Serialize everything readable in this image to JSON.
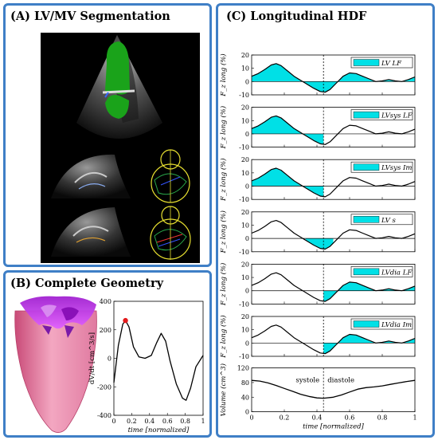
{
  "panels": {
    "a": {
      "title": "(A) LV/MV Segmentation"
    },
    "b": {
      "title": "(B) Complete Geometry"
    },
    "c": {
      "title": "(C) Longitudinal HDF"
    }
  },
  "colors": {
    "panel_border": "#3f7fc6",
    "fill": "#00e0e6",
    "curve": "#000000",
    "marker": "#e31a1c"
  },
  "icons": [
    "echo-apical-view",
    "echo-slice-1",
    "echo-slice-2",
    "lv-mesh-3d"
  ],
  "chart_data": [
    {
      "type": "line",
      "id": "dvdt",
      "xlabel": "time [normalized]",
      "ylabel": "dV/dt [cm^3/s]",
      "x_ticks": [
        "0",
        "0.2",
        "0.4",
        "0.6",
        "0.8",
        "1"
      ],
      "y_ticks": [
        "400",
        "200",
        "0",
        "-200",
        "-400"
      ],
      "xlim": [
        0,
        1
      ],
      "ylim": [
        -400,
        400
      ],
      "x": [
        0,
        0.05,
        0.1,
        0.13,
        0.17,
        0.22,
        0.28,
        0.35,
        0.42,
        0.48,
        0.53,
        0.58,
        0.63,
        0.7,
        0.77,
        0.81,
        0.86,
        0.92,
        1.0
      ],
      "y": [
        -170,
        90,
        240,
        265,
        220,
        80,
        10,
        0,
        20,
        110,
        175,
        120,
        -20,
        -180,
        -280,
        -295,
        -210,
        -60,
        20
      ],
      "highlight_point": {
        "x": 0.13,
        "y": 265
      }
    },
    {
      "type": "area",
      "id": "hdf",
      "xlabel": "time [normalized]",
      "x_ticks": [
        "0",
        "0.2",
        "0.4",
        "0.6",
        "0.8",
        "1"
      ],
      "y_ticks": [
        "20",
        "10",
        "0",
        "-10"
      ],
      "xlim": [
        0,
        1
      ],
      "ylim": [
        -10,
        20
      ],
      "systole_end": 0.44,
      "x": [
        0,
        0.04,
        0.08,
        0.12,
        0.15,
        0.18,
        0.22,
        0.26,
        0.3,
        0.34,
        0.38,
        0.42,
        0.45,
        0.48,
        0.52,
        0.56,
        0.6,
        0.64,
        0.68,
        0.72,
        0.76,
        0.8,
        0.84,
        0.88,
        0.92,
        0.96,
        1.0
      ],
      "series": [
        {
          "id": "lvlf",
          "label": "LV LF",
          "ylabel": "F_z long (%)",
          "fill_from": 0,
          "fill_to": 1,
          "y": [
            4,
            6,
            9,
            12.5,
            13.5,
            12,
            8,
            4,
            1,
            -2,
            -5,
            -7.5,
            -8,
            -6,
            -1,
            4,
            6.5,
            6,
            4,
            2,
            0,
            0.5,
            1.5,
            0.5,
            0,
            1.5,
            3.5
          ]
        },
        {
          "id": "lvsyslf",
          "label": "LVsys LF",
          "ylabel": "F_z long (%)",
          "fill_from": 0,
          "fill_to": 0.44,
          "y": [
            4,
            6,
            9,
            12.5,
            13.5,
            12,
            8,
            4,
            1,
            -2,
            -5,
            -7.5,
            -8,
            -6,
            -1,
            4,
            6.5,
            6,
            4,
            2,
            0,
            0.5,
            1.5,
            0.5,
            0,
            1.5,
            3.5
          ]
        },
        {
          "id": "lvsysim",
          "label": "LVsys Im",
          "ylabel": "F_z long (%)",
          "fill_from": 0,
          "fill_to": 0.44,
          "y": [
            4,
            6,
            9,
            12.5,
            13.5,
            12,
            8,
            4,
            1,
            -2,
            -5,
            -7.5,
            -8,
            -6,
            -1,
            4,
            6.5,
            6,
            4,
            2,
            0,
            0.5,
            1.5,
            0.5,
            0,
            1.5,
            3.5
          ]
        },
        {
          "id": "lvs",
          "label": "LV s",
          "ylabel": "F_z long (%)",
          "fill_from": 0.33,
          "fill_to": 0.5,
          "y": [
            4,
            6,
            9,
            12.5,
            13.5,
            12,
            8,
            4,
            1,
            -2,
            -5,
            -7.5,
            -8,
            -6,
            -1,
            4,
            6.5,
            6,
            4,
            2,
            0,
            0.5,
            1.5,
            0.5,
            0,
            1.5,
            3.5
          ]
        },
        {
          "id": "lvdialf",
          "label": "LVdia LF",
          "ylabel": "F_z long (%)",
          "fill_from": 0.44,
          "fill_to": 1,
          "y": [
            4,
            6,
            9,
            12.5,
            13.5,
            12,
            8,
            4,
            1,
            -2,
            -5,
            -7.5,
            -8,
            -6,
            -1,
            4,
            6.5,
            6,
            4,
            2,
            0,
            0.5,
            1.5,
            0.5,
            0,
            1.5,
            3.5
          ]
        },
        {
          "id": "lvdiaim",
          "label": "LVdia Im",
          "ylabel": "F_z long (%)",
          "fill_from": 0.44,
          "fill_to": 1,
          "y": [
            4,
            6,
            9,
            12.5,
            13.5,
            12,
            8,
            4,
            1,
            -2,
            -5,
            -7.5,
            -8,
            -6,
            -1,
            4,
            6.5,
            6,
            4,
            2,
            0,
            0.5,
            1.5,
            0.5,
            0,
            1.5,
            3.5
          ]
        }
      ]
    },
    {
      "type": "line",
      "id": "volume",
      "ylabel": "Volume (cm^3)",
      "xlabel": "time [normalized]",
      "x_ticks": [
        "0",
        "0.2",
        "0.4",
        "0.6",
        "0.8",
        "1"
      ],
      "y_ticks": [
        "120",
        "80",
        "40",
        "0"
      ],
      "xlim": [
        0,
        1
      ],
      "ylim": [
        0,
        120
      ],
      "systole_label": "systole",
      "diastole_label": "diastole",
      "x": [
        0,
        0.05,
        0.1,
        0.15,
        0.2,
        0.25,
        0.3,
        0.35,
        0.4,
        0.44,
        0.5,
        0.55,
        0.6,
        0.65,
        0.7,
        0.75,
        0.8,
        0.85,
        0.9,
        0.95,
        1.0
      ],
      "y": [
        86,
        84,
        79,
        72,
        64,
        56,
        48,
        42,
        38,
        37,
        40,
        46,
        54,
        62,
        66,
        68,
        71,
        75,
        79,
        83,
        86
      ]
    }
  ]
}
